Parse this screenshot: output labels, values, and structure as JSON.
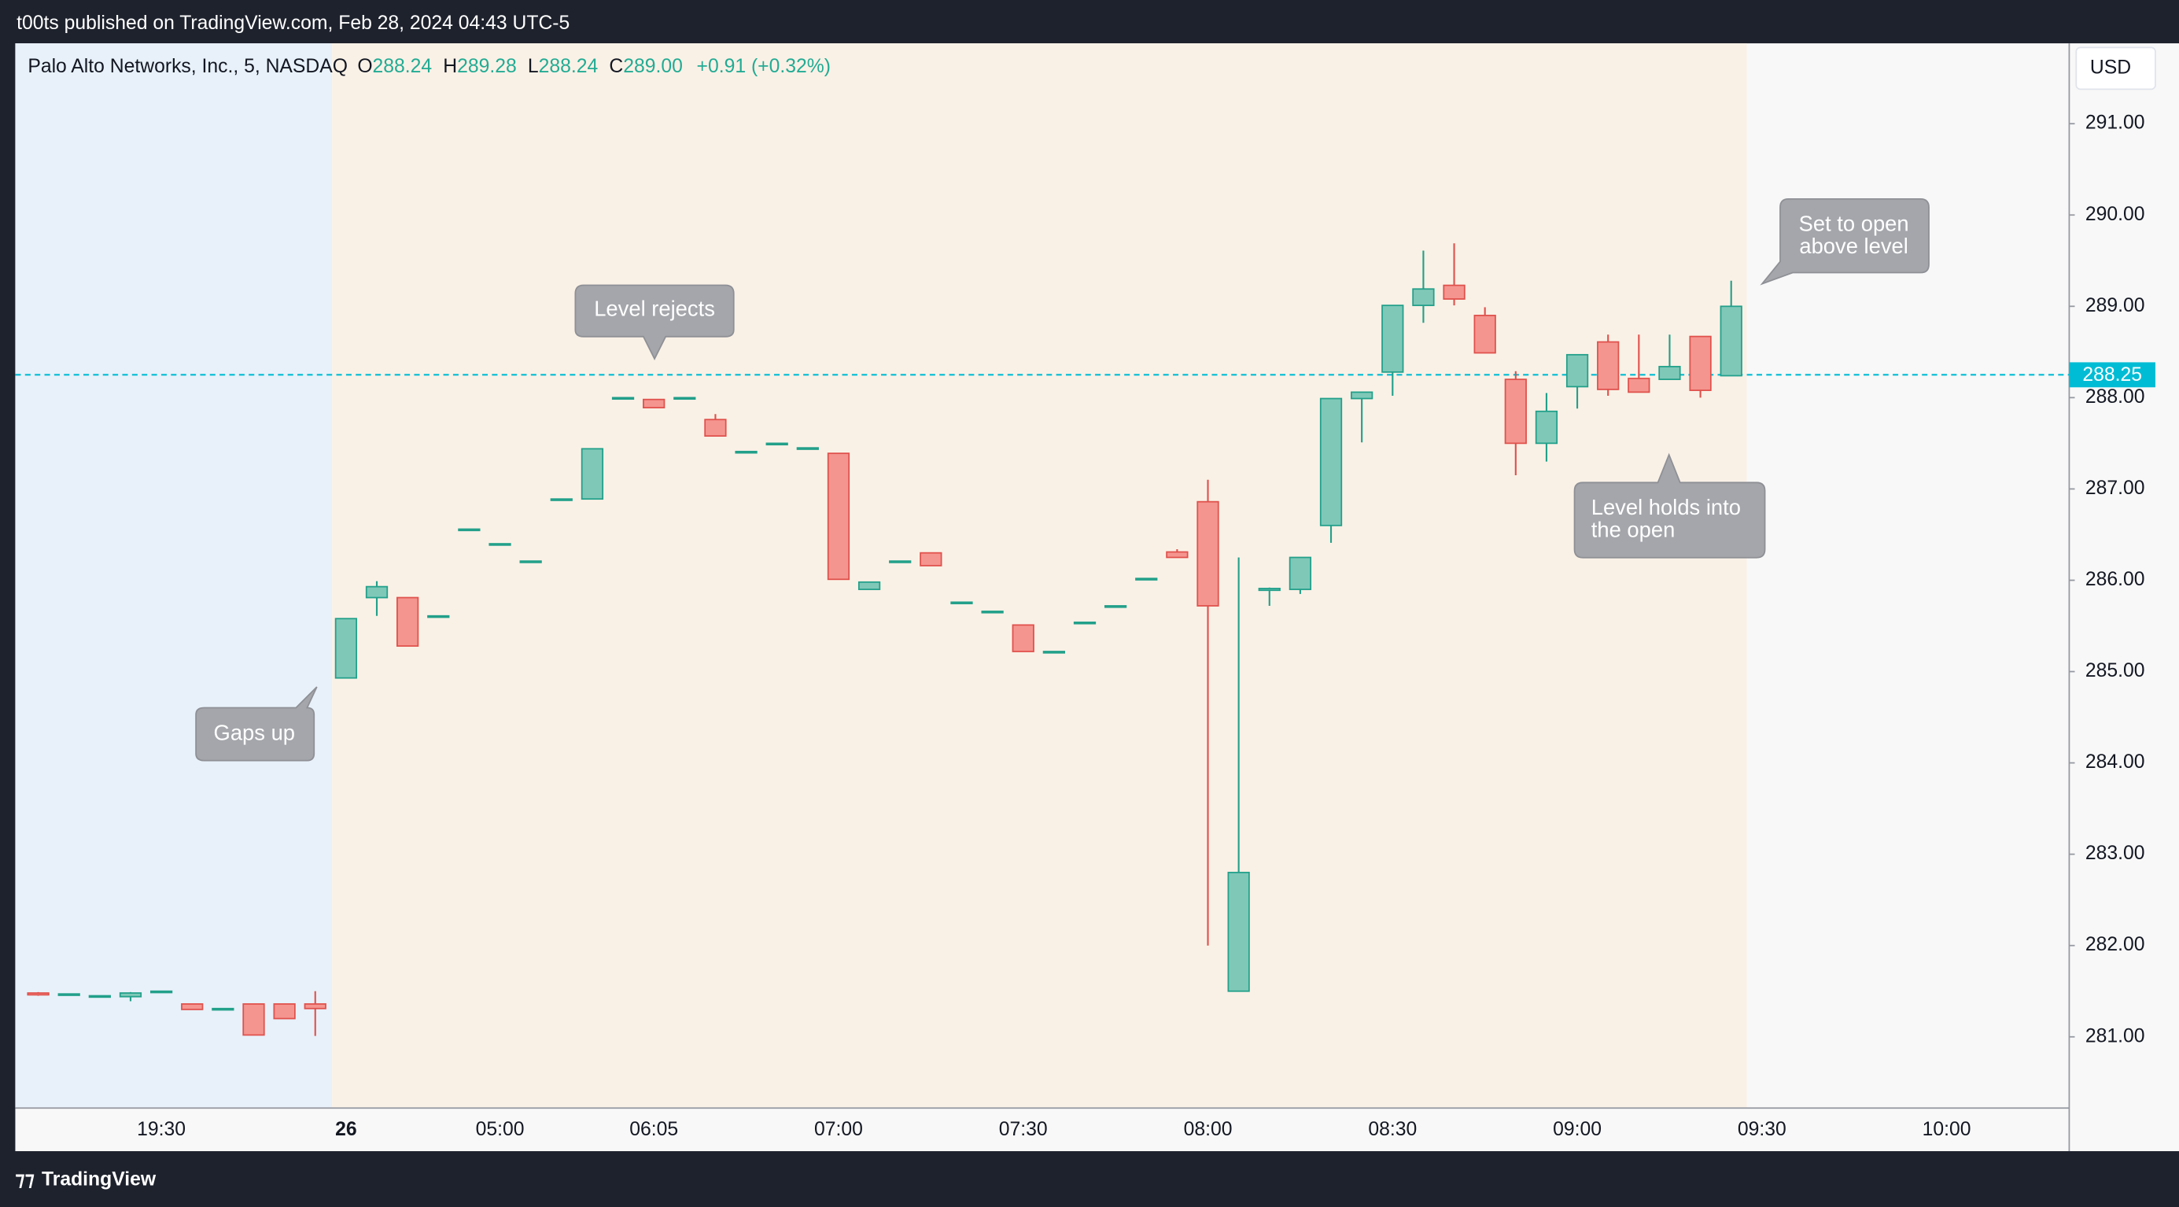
{
  "header": {
    "publisher": "t00ts published on TradingView.com, Feb 28, 2024 04:43 UTC-5",
    "brand": "TradingView"
  },
  "chart_data": {
    "type": "candlestick",
    "symbol": "Palo Alto Networks, Inc., 5, NASDAQ",
    "legend": [
      {
        "label": "O",
        "value": "288.24"
      },
      {
        "label": "H",
        "value": "289.28"
      },
      {
        "label": "L",
        "value": "288.24"
      },
      {
        "label": "C",
        "value": "289.00"
      }
    ],
    "change": "+0.91 (+0.32%)",
    "currency": "USD",
    "up_color": "#7fc8b8",
    "up_border": "#22a08a",
    "down_color": "#f5958f",
    "down_border": "#e0514c",
    "text_color": "#22ab94",
    "hline": {
      "value": 288.25,
      "label": "288.25",
      "color": "#00bcd4"
    },
    "categories": [
      null,
      null,
      null,
      null,
      "19:30",
      null,
      null,
      null,
      null,
      null,
      "26",
      null,
      null,
      null,
      null,
      "05:00",
      null,
      null,
      null,
      null,
      "06:05",
      null,
      null,
      null,
      null,
      null,
      "07:00",
      null,
      null,
      null,
      null,
      null,
      "07:30",
      null,
      null,
      null,
      null,
      null,
      "08:00",
      null,
      null,
      null,
      null,
      null,
      "08:30",
      null,
      null,
      null,
      null,
      null,
      "09:00",
      null,
      null,
      null,
      null,
      null,
      "09:30",
      null,
      null,
      null,
      null,
      null,
      "10:00",
      null,
      null,
      null
    ],
    "open": [
      281.48,
      281.47,
      281.45,
      281.44,
      281.5,
      281.36,
      281.31,
      281.36,
      281.36,
      281.36,
      284.93,
      285.81,
      285.81,
      285.61,
      286.56,
      286.4,
      286.21,
      286.89,
      286.89,
      288,
      287.98,
      288,
      287.76,
      287.41,
      287.5,
      287.45,
      287.39,
      285.9,
      286.21,
      286.3,
      285.76,
      285.66,
      285.51,
      285.22,
      285.54,
      285.72,
      286.02,
      286.31,
      286.86,
      281.5,
      285.89,
      285.9,
      286.6,
      287.99,
      288.28,
      289.01,
      289.23,
      288.9,
      288.2,
      287.5,
      288.12,
      288.61,
      288.21,
      288.2,
      288.67,
      288.24,
      null,
      null,
      null,
      null,
      null,
      null,
      null,
      null,
      null,
      null
    ],
    "high": [
      281.49,
      281.47,
      281.45,
      281.49,
      281.5,
      281.36,
      281.31,
      281.36,
      281.36,
      281.5,
      285.58,
      285.99,
      285.81,
      285.61,
      286.56,
      286.4,
      286.21,
      286.89,
      287.44,
      288,
      287.98,
      288,
      287.82,
      287.41,
      287.5,
      287.45,
      287.39,
      285.98,
      286.21,
      286.3,
      285.76,
      285.66,
      285.51,
      285.22,
      285.54,
      285.72,
      286.02,
      286.34,
      287.1,
      286.25,
      285.92,
      286.25,
      287.99,
      288.06,
      289.01,
      289.61,
      289.69,
      288.99,
      288.29,
      288.05,
      288.47,
      288.69,
      288.69,
      288.69,
      288.67,
      289.28,
      null,
      null,
      null,
      null,
      null,
      null,
      null,
      null,
      null,
      null
    ],
    "low": [
      281.45,
      281.47,
      281.45,
      281.39,
      281.5,
      281.3,
      281.31,
      281.02,
      281.2,
      281.01,
      284.93,
      285.61,
      285.28,
      285.61,
      286.56,
      286.4,
      286.21,
      286.89,
      286.89,
      288,
      287.89,
      288,
      287.58,
      287.41,
      287.5,
      287.45,
      286.01,
      285.9,
      286.21,
      286.16,
      285.76,
      285.66,
      285.22,
      285.22,
      285.54,
      285.72,
      286.02,
      286.25,
      282,
      281.5,
      285.72,
      285.85,
      286.41,
      287.51,
      288.02,
      288.82,
      289.01,
      288.49,
      287.15,
      287.3,
      287.88,
      288.02,
      288.06,
      288.2,
      288,
      288.24,
      null,
      null,
      null,
      null,
      null,
      null,
      null,
      null,
      null,
      null
    ],
    "close": [
      281.46,
      281.47,
      281.45,
      281.48,
      281.5,
      281.3,
      281.31,
      281.02,
      281.2,
      281.31,
      285.58,
      285.93,
      285.28,
      285.61,
      286.56,
      286.4,
      286.21,
      286.89,
      287.44,
      288,
      287.89,
      288,
      287.58,
      287.41,
      287.5,
      287.45,
      286.01,
      285.98,
      286.21,
      286.16,
      285.76,
      285.66,
      285.22,
      285.22,
      285.54,
      285.72,
      286.02,
      286.25,
      285.72,
      282.8,
      285.91,
      286.25,
      287.99,
      288.06,
      289.01,
      289.19,
      289.08,
      288.49,
      287.5,
      287.85,
      288.47,
      288.09,
      288.06,
      288.34,
      288.08,
      289,
      null,
      null,
      null,
      null,
      null,
      null,
      null,
      null,
      null,
      null
    ],
    "ylim": [
      280.22,
      291.88
    ],
    "yticks": [
      {
        "value": 281,
        "label": "281.00"
      },
      {
        "value": 282,
        "label": "282.00"
      },
      {
        "value": 283,
        "label": "283.00"
      },
      {
        "value": 284,
        "label": "284.00"
      },
      {
        "value": 285,
        "label": "285.00"
      },
      {
        "value": 286,
        "label": "286.00"
      },
      {
        "value": 287,
        "label": "287.00"
      },
      {
        "value": 288,
        "label": "288.00"
      },
      {
        "value": 289,
        "label": "289.00"
      },
      {
        "value": 290,
        "label": "290.00"
      },
      {
        "value": 291,
        "label": "291.00"
      }
    ],
    "annotations": [
      {
        "lines": [
          "Gaps up"
        ]
      },
      {
        "lines": [
          "Level rejects"
        ]
      },
      {
        "lines": [
          "Level holds into",
          "the open"
        ]
      },
      {
        "lines": [
          "Set to open",
          "above level"
        ]
      }
    ]
  }
}
